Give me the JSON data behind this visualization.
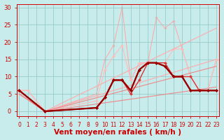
{
  "background_color": "#c8ecec",
  "grid_color": "#99cccc",
  "xlabel": "Vent moyen/en rafales ( km/h )",
  "xlabel_color": "#cc0000",
  "xlim": [
    -0.3,
    23.3
  ],
  "ylim": [
    -1.5,
    31
  ],
  "yticks": [
    0,
    5,
    10,
    15,
    20,
    25,
    30
  ],
  "xticks": [
    0,
    1,
    2,
    3,
    4,
    5,
    6,
    7,
    8,
    9,
    10,
    11,
    12,
    13,
    14,
    15,
    16,
    17,
    18,
    19,
    20,
    21,
    22,
    23
  ],
  "lines": [
    {
      "x": [
        0,
        1,
        3,
        9,
        10,
        11,
        12,
        13,
        14,
        15,
        16,
        17,
        18,
        19,
        20,
        21,
        22,
        23
      ],
      "y": [
        6,
        6,
        0,
        5,
        15,
        19,
        30,
        9,
        14,
        14,
        27,
        24,
        26,
        18,
        10,
        6,
        6,
        15
      ],
      "color": "#ffaaaa",
      "lw": 0.8,
      "marker": "D",
      "ms": 1.8,
      "zorder": 1
    },
    {
      "x": [
        0,
        1,
        3,
        9,
        10,
        11,
        12,
        13,
        14,
        15,
        16,
        17,
        18,
        19,
        20,
        21,
        22,
        23
      ],
      "y": [
        6,
        6,
        0,
        3,
        12,
        16,
        19,
        9,
        14,
        14,
        14,
        14,
        18,
        18,
        10,
        6,
        6,
        15
      ],
      "color": "#ffbbbb",
      "lw": 0.8,
      "marker": "D",
      "ms": 1.8,
      "zorder": 2
    },
    {
      "x": [
        0,
        3,
        23
      ],
      "y": [
        5,
        0,
        24
      ],
      "color": "#ffaaaa",
      "lw": 0.8,
      "marker": null,
      "ms": 0,
      "zorder": 3
    },
    {
      "x": [
        0,
        3,
        23
      ],
      "y": [
        5,
        0,
        15
      ],
      "color": "#ffaaaa",
      "lw": 0.8,
      "marker": null,
      "ms": 0,
      "zorder": 3
    },
    {
      "x": [
        0,
        3,
        23
      ],
      "y": [
        5,
        0,
        13
      ],
      "color": "#ee8888",
      "lw": 0.8,
      "marker": null,
      "ms": 0,
      "zorder": 3
    },
    {
      "x": [
        0,
        3,
        23
      ],
      "y": [
        5,
        0,
        7
      ],
      "color": "#ee8888",
      "lw": 0.8,
      "marker": null,
      "ms": 0,
      "zorder": 3
    },
    {
      "x": [
        0,
        3,
        9,
        10,
        11,
        12,
        13,
        14,
        15,
        16,
        17,
        18,
        19,
        20,
        21,
        22,
        23
      ],
      "y": [
        6,
        0,
        1,
        4,
        9,
        9,
        5,
        9,
        14,
        14,
        14,
        10,
        10,
        10,
        6,
        6,
        6
      ],
      "color": "#dd3333",
      "lw": 1.0,
      "marker": "D",
      "ms": 2.0,
      "zorder": 4
    },
    {
      "x": [
        0,
        3,
        9,
        10,
        11,
        12,
        13,
        14,
        15,
        16,
        17,
        18,
        19,
        20,
        21,
        22,
        23
      ],
      "y": [
        6,
        0,
        1,
        4,
        9,
        9,
        6,
        12,
        14,
        14,
        13,
        10,
        10,
        6,
        6,
        6,
        6
      ],
      "color": "#bb0000",
      "lw": 1.3,
      "marker": "D",
      "ms": 2.0,
      "zorder": 5
    },
    {
      "x": [
        0,
        3,
        9,
        10,
        11,
        12,
        13,
        14,
        15,
        16,
        17,
        18,
        19,
        20,
        21,
        22,
        23
      ],
      "y": [
        6,
        0,
        1,
        4,
        9,
        9,
        6,
        12,
        14,
        14,
        13,
        10,
        10,
        6,
        6,
        6,
        6
      ],
      "color": "#990000",
      "lw": 1.6,
      "marker": "D",
      "ms": 2.0,
      "zorder": 6
    }
  ]
}
